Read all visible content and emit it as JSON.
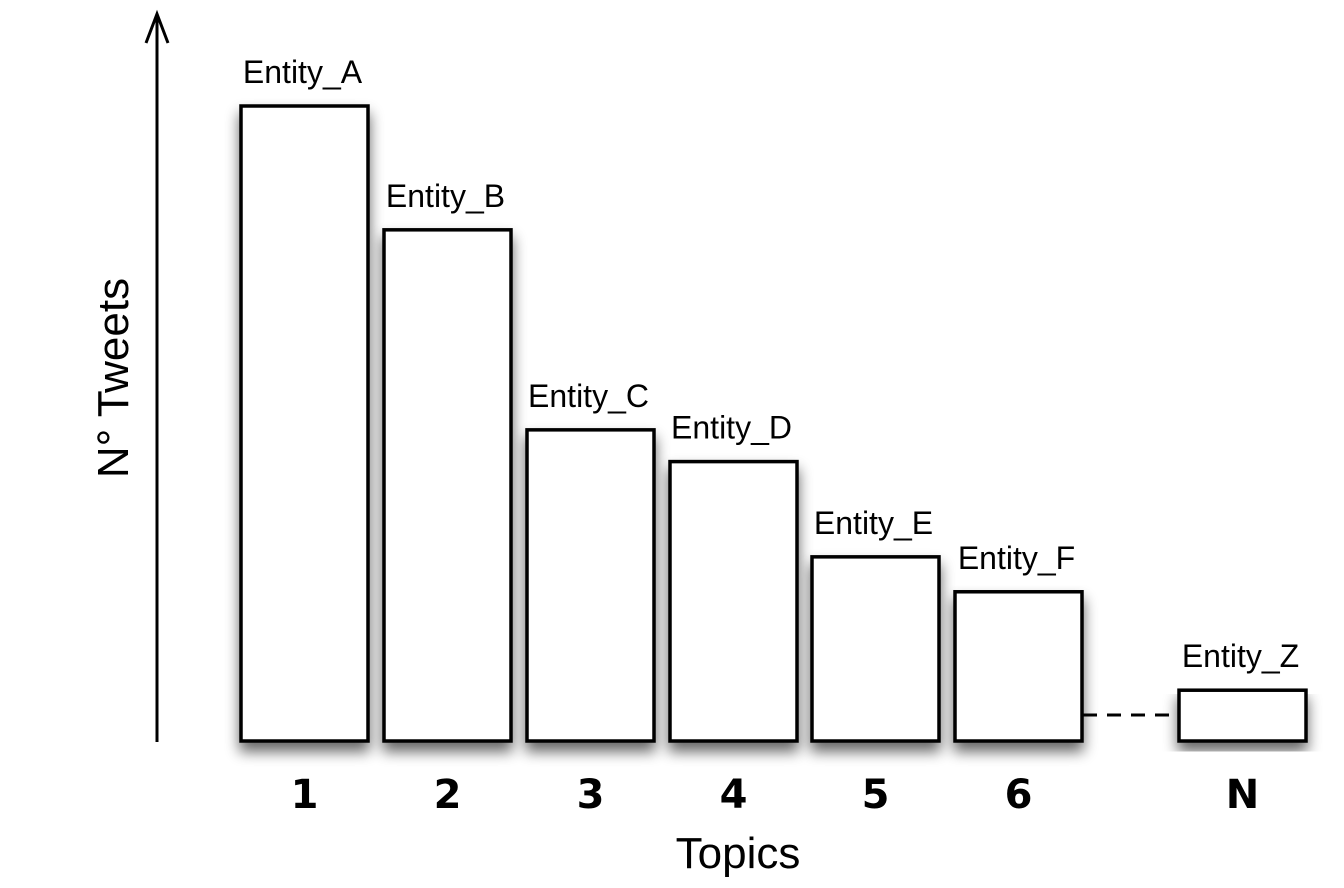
{
  "chart_data": {
    "type": "bar",
    "categories": [
      "1",
      "2",
      "3",
      "4",
      "5",
      "6",
      "N"
    ],
    "values": [
      100,
      80.5,
      49,
      44,
      29,
      23.5,
      8
    ],
    "labels": [
      "Entity_A",
      "Entity_B",
      "Entity_C",
      "Entity_D",
      "Entity_E",
      "Entity_F",
      "Entity_Z"
    ],
    "xlabel": "Topics",
    "ylabel": "N° Tweets",
    "ylim": [
      0,
      100
    ],
    "grid": false,
    "axis_ticks": false,
    "gap_after_category": "6",
    "colors": {
      "bar_fill": "#ffffff",
      "bar_stroke": "#000000",
      "axis": "#000000"
    }
  }
}
